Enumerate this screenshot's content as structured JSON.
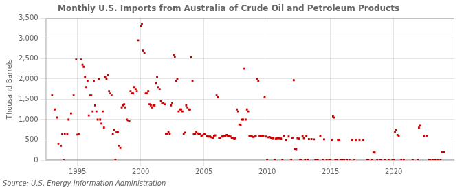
{
  "chart_data": {
    "type": "scatter",
    "title": "Monthly U.S. Imports from Australia of Crude Oil and Petroleum Products",
    "ylabel": "Thousand Barrels",
    "annotations": [
      "Source: U.S. Energy Information Administration"
    ],
    "color": "#cc0000",
    "marker": "square",
    "grid": true,
    "xlim": [
      1992.5,
      2024.8
    ],
    "ylim": [
      0,
      3500
    ],
    "xticks": [
      1995,
      2000,
      2005,
      2010,
      2015,
      2020
    ],
    "yticks": [
      0,
      500,
      {
        "value": 1000,
        "label": "1,000"
      },
      {
        "value": 1500,
        "label": "1,500"
      },
      {
        "value": 2000,
        "label": "2,000"
      },
      {
        "value": 2500,
        "label": "2,500"
      },
      {
        "value": 3000,
        "label": "3,000"
      },
      {
        "value": 3500,
        "label": "3,500"
      }
    ],
    "x": [
      1993.0,
      1993.2,
      1993.4,
      1993.5,
      1993.7,
      1993.8,
      1993.9,
      1994.0,
      1994.2,
      1994.3,
      1994.5,
      1994.7,
      1994.9,
      1995.0,
      1995.1,
      1995.3,
      1995.4,
      1995.5,
      1995.6,
      1995.7,
      1995.8,
      1995.9,
      1996.0,
      1996.1,
      1996.2,
      1996.3,
      1996.4,
      1996.5,
      1996.6,
      1996.7,
      1996.8,
      1996.9,
      1997.0,
      1997.1,
      1997.2,
      1997.3,
      1997.4,
      1997.5,
      1997.6,
      1997.7,
      1997.8,
      1997.9,
      1998.0,
      1998.1,
      1998.2,
      1998.3,
      1998.4,
      1998.5,
      1998.6,
      1998.7,
      1998.8,
      1998.9,
      1999.0,
      1999.1,
      1999.2,
      1999.3,
      1999.4,
      1999.5,
      1999.6,
      1999.7,
      1999.8,
      2000.0,
      2000.1,
      2000.2,
      2000.3,
      2000.4,
      2000.5,
      2000.6,
      2000.7,
      2000.8,
      2000.9,
      2001.0,
      2001.1,
      2001.2,
      2001.3,
      2001.4,
      2001.5,
      2001.6,
      2001.7,
      2001.8,
      2001.9,
      2002.0,
      2002.1,
      2002.2,
      2002.3,
      2002.4,
      2002.5,
      2002.6,
      2002.7,
      2002.8,
      2002.9,
      2003.0,
      2003.1,
      2003.2,
      2003.3,
      2003.4,
      2003.5,
      2003.6,
      2003.7,
      2003.8,
      2003.9,
      2004.0,
      2004.1,
      2004.2,
      2004.3,
      2004.4,
      2004.5,
      2004.6,
      2004.7,
      2004.8,
      2004.9,
      2005.0,
      2005.1,
      2005.2,
      2005.3,
      2005.4,
      2005.5,
      2005.6,
      2005.7,
      2005.8,
      2005.9,
      2006.0,
      2006.1,
      2006.2,
      2006.3,
      2006.4,
      2006.5,
      2006.6,
      2006.7,
      2006.8,
      2006.9,
      2007.0,
      2007.1,
      2007.2,
      2007.3,
      2007.4,
      2007.5,
      2007.6,
      2007.7,
      2007.8,
      2007.9,
      2008.0,
      2008.1,
      2008.2,
      2008.3,
      2008.4,
      2008.5,
      2008.6,
      2008.7,
      2008.8,
      2008.9,
      2009.0,
      2009.1,
      2009.2,
      2009.3,
      2009.4,
      2009.5,
      2009.6,
      2009.7,
      2009.8,
      2009.9,
      2010.0,
      2010.1,
      2010.2,
      2010.3,
      2010.4,
      2010.5,
      2010.6,
      2010.7,
      2010.8,
      2010.9,
      2011.0,
      2011.1,
      2011.2,
      2011.3,
      2011.5,
      2011.7,
      2011.9,
      2012.0,
      2012.1,
      2012.2,
      2012.3,
      2012.4,
      2012.5,
      2012.6,
      2012.7,
      2012.8,
      2012.9,
      2013.0,
      2013.1,
      2013.2,
      2013.3,
      2013.5,
      2013.7,
      2013.8,
      2013.9,
      2014.0,
      2014.2,
      2014.4,
      2014.5,
      2014.7,
      2014.9,
      2015.0,
      2015.1,
      2015.2,
      2015.3,
      2015.4,
      2015.5,
      2015.6,
      2015.7,
      2015.8,
      2015.9,
      2016.0,
      2016.1,
      2016.3,
      2016.5,
      2016.7,
      2016.9,
      2017.0,
      2017.3,
      2017.6,
      2017.9,
      2018.0,
      2018.3,
      2018.4,
      2018.5,
      2018.7,
      2018.9,
      2019.0,
      2019.3,
      2019.6,
      2019.9,
      2020.0,
      2020.1,
      2020.2,
      2020.3,
      2020.4,
      2020.6,
      2020.8,
      2021.5,
      2021.9,
      2022.0,
      2022.1,
      2022.4,
      2022.6,
      2022.8,
      2022.9,
      2023.1,
      2023.3,
      2023.5,
      2023.7,
      2023.8,
      2024.0
    ],
    "values": [
      1600,
      1250,
      1050,
      400,
      350,
      650,
      0,
      650,
      640,
      1000,
      1150,
      1600,
      2480,
      630,
      640,
      2480,
      2350,
      2300,
      2050,
      1800,
      1950,
      1100,
      1600,
      1600,
      1200,
      1950,
      1350,
      1200,
      1000,
      2000,
      1000,
      900,
      1200,
      800,
      2050,
      2000,
      2100,
      1700,
      1650,
      1600,
      650,
      750,
      0,
      690,
      700,
      350,
      300,
      1300,
      1350,
      1380,
      1300,
      1000,
      980,
      960,
      1700,
      1650,
      1650,
      1800,
      1750,
      1700,
      2950,
      3300,
      3350,
      2700,
      2650,
      1650,
      1650,
      1700,
      1380,
      1350,
      1300,
      1350,
      1350,
      1900,
      2050,
      1800,
      1750,
      1450,
      1400,
      1400,
      1380,
      650,
      650,
      700,
      650,
      1350,
      1400,
      2600,
      2550,
      1950,
      2000,
      1200,
      1250,
      1250,
      1200,
      650,
      680,
      1350,
      1300,
      1250,
      1250,
      2550,
      1950,
      650,
      650,
      700,
      660,
      650,
      650,
      600,
      610,
      650,
      650,
      600,
      580,
      580,
      580,
      560,
      550,
      600,
      610,
      1600,
      1550,
      550,
      550,
      580,
      580,
      600,
      600,
      620,
      600,
      600,
      580,
      550,
      550,
      530,
      540,
      1250,
      1200,
      880,
      870,
      1000,
      1000,
      2250,
      1000,
      1250,
      1200,
      600,
      590,
      580,
      570,
      580,
      590,
      2000,
      1950,
      600,
      600,
      600,
      590,
      1550,
      580,
      0,
      560,
      570,
      550,
      540,
      540,
      0,
      530,
      540,
      540,
      540,
      530,
      0,
      600,
      500,
      580,
      0,
      550,
      1970,
      280,
      270,
      540,
      530,
      0,
      0,
      600,
      540,
      0,
      600,
      0,
      520,
      520,
      510,
      0,
      0,
      0,
      600,
      0,
      510,
      0,
      0,
      0,
      500,
      1080,
      1050,
      0,
      0,
      500,
      500,
      0,
      0,
      0,
      0,
      0,
      0,
      500,
      0,
      500,
      500,
      500,
      0,
      0,
      0,
      200,
      190,
      0,
      0,
      0,
      0,
      0,
      0,
      0,
      700,
      750,
      620,
      600,
      0,
      0,
      0,
      0,
      800,
      850,
      600,
      600,
      0,
      0,
      0,
      0,
      0,
      0,
      200,
      200
    ]
  }
}
